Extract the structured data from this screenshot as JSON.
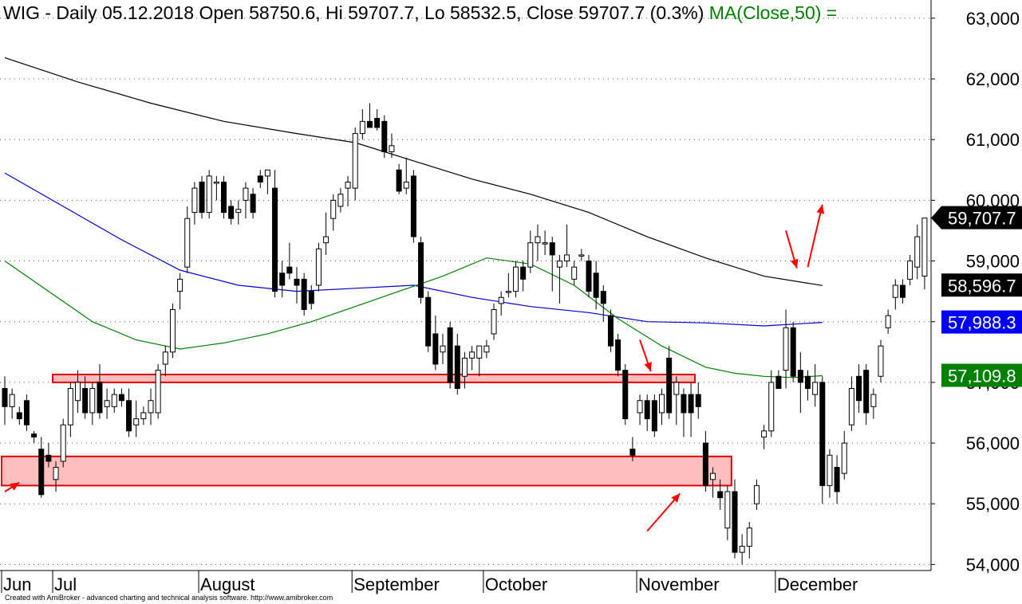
{
  "header": {
    "text": "WIG - Daily 05.12.2018 Open 58750.6, Hi 59707.7, Lo 58532.5, Close 59707.7 (0.3%)",
    "ma_text": "MA(Close,50) ="
  },
  "credit": "Created with AmiBroker - advanced charting and technical analysis software. http://www.amibroker.com",
  "chart_data": {
    "type": "candlestick",
    "title": "WIG - Daily",
    "ylim": [
      53900,
      63300
    ],
    "y_ticks": [
      54000,
      55000,
      56000,
      57000,
      58000,
      59000,
      60000,
      61000,
      62000,
      63000
    ],
    "y_tick_labels": [
      "54,000",
      "55,000",
      "56,000",
      "57,000",
      "58,000",
      "59,000",
      "60,000",
      "61,000",
      "62,000",
      "63,000"
    ],
    "grid": true,
    "month_labels": [
      {
        "label": "Jun",
        "index": 0
      },
      {
        "label": "Jul",
        "index": 7
      },
      {
        "label": "August",
        "index": 27
      },
      {
        "label": "September",
        "index": 48
      },
      {
        "label": "October",
        "index": 66
      },
      {
        "label": "November",
        "index": 87
      },
      {
        "label": "December",
        "index": 106
      }
    ],
    "last_values": [
      {
        "label": "59,707.7",
        "value": 59707.7,
        "color": "#000000",
        "text_color": "#ffffff",
        "pointer": true
      },
      {
        "label": "58,596.7",
        "value": 58596.7,
        "color": "#000000",
        "text_color": "#ffffff"
      },
      {
        "label": "57,988.3",
        "value": 57988.3,
        "color": "#0000ff",
        "text_color": "#ffffff"
      },
      {
        "label": "57,109.8",
        "value": 57109.8,
        "color": "#008000",
        "text_color": "#ffffff"
      }
    ],
    "support_zones": [
      {
        "from": 57000,
        "to": 57130,
        "start_index": 7,
        "end_index": 94
      },
      {
        "from": 55300,
        "to": 55780,
        "start_index": 0,
        "end_index": 99
      }
    ],
    "arrows": [
      {
        "from_index": 0,
        "from_value": 55200,
        "to_index": 2,
        "to_value": 55350
      },
      {
        "from_index": 87,
        "from_value": 57700,
        "to_index": 88.5,
        "to_value": 57180
      },
      {
        "from_index": 88,
        "from_value": 54550,
        "to_index": 92.5,
        "to_value": 55170
      },
      {
        "from_index": 107,
        "from_value": 59500,
        "to_index": 108.5,
        "to_value": 58880
      },
      {
        "from_index": 110,
        "from_value": 58900,
        "to_index": 112,
        "to_value": 59930
      }
    ],
    "candles": [
      {
        "o": 56900,
        "h": 57100,
        "l": 56300,
        "c": 56600
      },
      {
        "o": 56600,
        "h": 56900,
        "l": 56400,
        "c": 56800
      },
      {
        "o": 56500,
        "h": 56600,
        "l": 56300,
        "c": 56400
      },
      {
        "o": 56700,
        "h": 56800,
        "l": 56200,
        "c": 56300
      },
      {
        "o": 56150,
        "h": 56200,
        "l": 56000,
        "c": 56100
      },
      {
        "o": 55900,
        "h": 56100,
        "l": 55100,
        "c": 55150
      },
      {
        "o": 55800,
        "h": 56000,
        "l": 55600,
        "c": 55700
      },
      {
        "o": 55400,
        "h": 55700,
        "l": 55200,
        "c": 55600
      },
      {
        "o": 55700,
        "h": 56400,
        "l": 55600,
        "c": 56300
      },
      {
        "o": 56300,
        "h": 57000,
        "l": 56100,
        "c": 56900
      },
      {
        "o": 56700,
        "h": 57200,
        "l": 56500,
        "c": 57000
      },
      {
        "o": 56900,
        "h": 57100,
        "l": 56400,
        "c": 56500
      },
      {
        "o": 56500,
        "h": 57000,
        "l": 56300,
        "c": 56900
      },
      {
        "o": 57000,
        "h": 57300,
        "l": 56400,
        "c": 56500
      },
      {
        "o": 56600,
        "h": 56900,
        "l": 56400,
        "c": 56700
      },
      {
        "o": 56600,
        "h": 56900,
        "l": 56500,
        "c": 56800
      },
      {
        "o": 56800,
        "h": 56900,
        "l": 56600,
        "c": 56700
      },
      {
        "o": 56700,
        "h": 56900,
        "l": 56100,
        "c": 56200
      },
      {
        "o": 56300,
        "h": 56700,
        "l": 56100,
        "c": 56400
      },
      {
        "o": 56400,
        "h": 56600,
        "l": 56300,
        "c": 56500
      },
      {
        "o": 56500,
        "h": 56900,
        "l": 56300,
        "c": 56700
      },
      {
        "o": 56500,
        "h": 57300,
        "l": 56400,
        "c": 57200
      },
      {
        "o": 57300,
        "h": 57600,
        "l": 57100,
        "c": 57500
      },
      {
        "o": 57500,
        "h": 58300,
        "l": 57400,
        "c": 58200
      },
      {
        "o": 58500,
        "h": 58800,
        "l": 58200,
        "c": 58700
      },
      {
        "o": 58900,
        "h": 59900,
        "l": 58800,
        "c": 59700
      },
      {
        "o": 59800,
        "h": 60300,
        "l": 59600,
        "c": 60200
      },
      {
        "o": 60300,
        "h": 60400,
        "l": 59700,
        "c": 59800
      },
      {
        "o": 59800,
        "h": 60500,
        "l": 59700,
        "c": 60400
      },
      {
        "o": 60300,
        "h": 60400,
        "l": 60000,
        "c": 60300
      },
      {
        "o": 60300,
        "h": 60400,
        "l": 59700,
        "c": 59800
      },
      {
        "o": 59900,
        "h": 60000,
        "l": 59600,
        "c": 59700
      },
      {
        "o": 59800,
        "h": 60000,
        "l": 59600,
        "c": 59850
      },
      {
        "o": 60000,
        "h": 60300,
        "l": 59700,
        "c": 60200
      },
      {
        "o": 60100,
        "h": 60200,
        "l": 59700,
        "c": 59800
      },
      {
        "o": 60400,
        "h": 60500,
        "l": 60200,
        "c": 60300
      },
      {
        "o": 60400,
        "h": 60500,
        "l": 60100,
        "c": 60500
      },
      {
        "o": 60200,
        "h": 60500,
        "l": 58400,
        "c": 58500
      },
      {
        "o": 58800,
        "h": 59000,
        "l": 58400,
        "c": 58600
      },
      {
        "o": 58900,
        "h": 59300,
        "l": 58700,
        "c": 58800
      },
      {
        "o": 58700,
        "h": 58900,
        "l": 58300,
        "c": 58600
      },
      {
        "o": 58700,
        "h": 58800,
        "l": 58100,
        "c": 58200
      },
      {
        "o": 58500,
        "h": 58600,
        "l": 58200,
        "c": 58300
      },
      {
        "o": 58600,
        "h": 59300,
        "l": 58500,
        "c": 59200
      },
      {
        "o": 59300,
        "h": 59800,
        "l": 59100,
        "c": 59400
      },
      {
        "o": 59700,
        "h": 60100,
        "l": 59500,
        "c": 60000
      },
      {
        "o": 59900,
        "h": 60200,
        "l": 59800,
        "c": 60100
      },
      {
        "o": 60200,
        "h": 60400,
        "l": 59900,
        "c": 60300
      },
      {
        "o": 60200,
        "h": 61200,
        "l": 60000,
        "c": 61100
      },
      {
        "o": 61100,
        "h": 61500,
        "l": 61000,
        "c": 61300
      },
      {
        "o": 61300,
        "h": 61600,
        "l": 61200,
        "c": 61200
      },
      {
        "o": 61350,
        "h": 61500,
        "l": 61150,
        "c": 61200
      },
      {
        "o": 61300,
        "h": 61400,
        "l": 60700,
        "c": 60800
      },
      {
        "o": 60800,
        "h": 61100,
        "l": 60700,
        "c": 60900
      },
      {
        "o": 60500,
        "h": 60600,
        "l": 60100,
        "c": 60150
      },
      {
        "o": 60200,
        "h": 60700,
        "l": 60100,
        "c": 60300
      },
      {
        "o": 60400,
        "h": 60500,
        "l": 59300,
        "c": 59400
      },
      {
        "o": 59300,
        "h": 59400,
        "l": 58300,
        "c": 58400
      },
      {
        "o": 58400,
        "h": 58500,
        "l": 57500,
        "c": 57600
      },
      {
        "o": 57800,
        "h": 58100,
        "l": 57200,
        "c": 57300
      },
      {
        "o": 57500,
        "h": 57800,
        "l": 57300,
        "c": 57600
      },
      {
        "o": 57900,
        "h": 58000,
        "l": 56900,
        "c": 57000
      },
      {
        "o": 57600,
        "h": 57800,
        "l": 56800,
        "c": 56900
      },
      {
        "o": 57100,
        "h": 57500,
        "l": 56900,
        "c": 57400
      },
      {
        "o": 57400,
        "h": 57600,
        "l": 57200,
        "c": 57500
      },
      {
        "o": 57400,
        "h": 57600,
        "l": 57100,
        "c": 57600
      },
      {
        "o": 57500,
        "h": 57700,
        "l": 57400,
        "c": 57600
      },
      {
        "o": 57800,
        "h": 58300,
        "l": 57700,
        "c": 58200
      },
      {
        "o": 58300,
        "h": 58500,
        "l": 58100,
        "c": 58400
      },
      {
        "o": 58500,
        "h": 58800,
        "l": 58400,
        "c": 58500
      },
      {
        "o": 58500,
        "h": 59000,
        "l": 58400,
        "c": 58900
      },
      {
        "o": 58900,
        "h": 59000,
        "l": 58500,
        "c": 58700
      },
      {
        "o": 58900,
        "h": 59500,
        "l": 58800,
        "c": 59300
      },
      {
        "o": 59300,
        "h": 59600,
        "l": 59000,
        "c": 59400
      },
      {
        "o": 59300,
        "h": 59500,
        "l": 59100,
        "c": 59300
      },
      {
        "o": 59300,
        "h": 59400,
        "l": 58500,
        "c": 59100
      },
      {
        "o": 58900,
        "h": 59100,
        "l": 58300,
        "c": 59000
      },
      {
        "o": 59000,
        "h": 59600,
        "l": 58900,
        "c": 59100
      },
      {
        "o": 58700,
        "h": 59000,
        "l": 58600,
        "c": 58900
      },
      {
        "o": 59100,
        "h": 59200,
        "l": 59000,
        "c": 59100
      },
      {
        "o": 59000,
        "h": 59100,
        "l": 58400,
        "c": 58500
      },
      {
        "o": 58800,
        "h": 59000,
        "l": 58200,
        "c": 58400
      },
      {
        "o": 58500,
        "h": 58600,
        "l": 58000,
        "c": 58300
      },
      {
        "o": 58100,
        "h": 58200,
        "l": 57500,
        "c": 57600
      },
      {
        "o": 57700,
        "h": 57800,
        "l": 57100,
        "c": 57200
      },
      {
        "o": 57200,
        "h": 57300,
        "l": 56300,
        "c": 56400
      },
      {
        "o": 55900,
        "h": 56100,
        "l": 55700,
        "c": 55800
      },
      {
        "o": 56500,
        "h": 56800,
        "l": 56300,
        "c": 56700
      },
      {
        "o": 56700,
        "h": 56800,
        "l": 56200,
        "c": 56400
      },
      {
        "o": 56700,
        "h": 56800,
        "l": 56100,
        "c": 56200
      },
      {
        "o": 56500,
        "h": 56900,
        "l": 56300,
        "c": 56800
      },
      {
        "o": 57400,
        "h": 57600,
        "l": 56400,
        "c": 56500
      },
      {
        "o": 56800,
        "h": 57100,
        "l": 56300,
        "c": 57000
      },
      {
        "o": 56800,
        "h": 56900,
        "l": 56100,
        "c": 56500
      },
      {
        "o": 56800,
        "h": 57000,
        "l": 56100,
        "c": 56500
      },
      {
        "o": 56800,
        "h": 57000,
        "l": 56400,
        "c": 56600
      },
      {
        "o": 56000,
        "h": 56200,
        "l": 55200,
        "c": 55300
      },
      {
        "o": 55400,
        "h": 55600,
        "l": 55100,
        "c": 55500
      },
      {
        "o": 55200,
        "h": 55400,
        "l": 54900,
        "c": 55100
      },
      {
        "o": 54600,
        "h": 55300,
        "l": 54400,
        "c": 55200
      },
      {
        "o": 55200,
        "h": 55400,
        "l": 54100,
        "c": 54200
      },
      {
        "o": 54200,
        "h": 54500,
        "l": 54000,
        "c": 54300
      },
      {
        "o": 54300,
        "h": 54700,
        "l": 54100,
        "c": 54600
      },
      {
        "o": 55000,
        "h": 55400,
        "l": 54900,
        "c": 55300
      },
      {
        "o": 56100,
        "h": 56300,
        "l": 55900,
        "c": 56200
      },
      {
        "o": 56200,
        "h": 57200,
        "l": 56100,
        "c": 57000
      },
      {
        "o": 57100,
        "h": 57200,
        "l": 56900,
        "c": 56900
      },
      {
        "o": 57200,
        "h": 58200,
        "l": 56900,
        "c": 57900
      },
      {
        "o": 57900,
        "h": 58000,
        "l": 57000,
        "c": 57100
      },
      {
        "o": 57200,
        "h": 57500,
        "l": 56500,
        "c": 57000
      },
      {
        "o": 57100,
        "h": 57200,
        "l": 56700,
        "c": 56900
      },
      {
        "o": 56800,
        "h": 57300,
        "l": 56600,
        "c": 57000
      },
      {
        "o": 57000,
        "h": 57100,
        "l": 55000,
        "c": 55300
      },
      {
        "o": 55300,
        "h": 55900,
        "l": 55100,
        "c": 55800
      },
      {
        "o": 55600,
        "h": 55800,
        "l": 55000,
        "c": 55200
      },
      {
        "o": 55500,
        "h": 56200,
        "l": 55400,
        "c": 56000
      },
      {
        "o": 56300,
        "h": 57100,
        "l": 56200,
        "c": 56900
      },
      {
        "o": 57100,
        "h": 57300,
        "l": 56500,
        "c": 56700
      },
      {
        "o": 57200,
        "h": 57300,
        "l": 56300,
        "c": 56500
      },
      {
        "o": 56600,
        "h": 56900,
        "l": 56400,
        "c": 56800
      },
      {
        "o": 57100,
        "h": 57700,
        "l": 57000,
        "c": 57600
      },
      {
        "o": 57900,
        "h": 58200,
        "l": 57800,
        "c": 58100
      },
      {
        "o": 58400,
        "h": 58700,
        "l": 58200,
        "c": 58600
      },
      {
        "o": 58600,
        "h": 58700,
        "l": 58300,
        "c": 58400
      },
      {
        "o": 58700,
        "h": 59100,
        "l": 58600,
        "c": 59000
      },
      {
        "o": 58900,
        "h": 59600,
        "l": 58700,
        "c": 59400
      },
      {
        "o": 58750.6,
        "h": 59707.7,
        "l": 58532.5,
        "c": 59707.7
      }
    ],
    "series": [
      {
        "key": "ma200",
        "color": "#000000",
        "x": [
          0,
          10,
          20,
          30,
          40,
          48,
          56,
          64,
          72,
          80,
          88,
          96,
          104,
          112
        ],
        "values": [
          62350,
          61950,
          61600,
          61300,
          61100,
          60950,
          60650,
          60350,
          60100,
          59800,
          59400,
          59050,
          58750,
          58596.7
        ]
      },
      {
        "key": "ma100",
        "color": "#0000cc",
        "x": [
          0,
          8,
          16,
          24,
          32,
          40,
          48,
          56,
          64,
          72,
          80,
          88,
          96,
          104,
          112
        ],
        "values": [
          60450,
          59900,
          59350,
          58850,
          58600,
          58500,
          58550,
          58600,
          58400,
          58250,
          58150,
          58000,
          57980,
          57930,
          57988.3
        ]
      },
      {
        "key": "ma50",
        "color": "#008000",
        "x": [
          0,
          6,
          12,
          18,
          24,
          30,
          36,
          42,
          48,
          54,
          60,
          66,
          72,
          78,
          84,
          90,
          96,
          100,
          104,
          108,
          112
        ],
        "values": [
          59000,
          58500,
          58000,
          57700,
          57550,
          57650,
          57800,
          58000,
          58250,
          58500,
          58750,
          59050,
          58950,
          58600,
          58050,
          57600,
          57250,
          57150,
          57100,
          57080,
          57109.8
        ]
      }
    ]
  }
}
